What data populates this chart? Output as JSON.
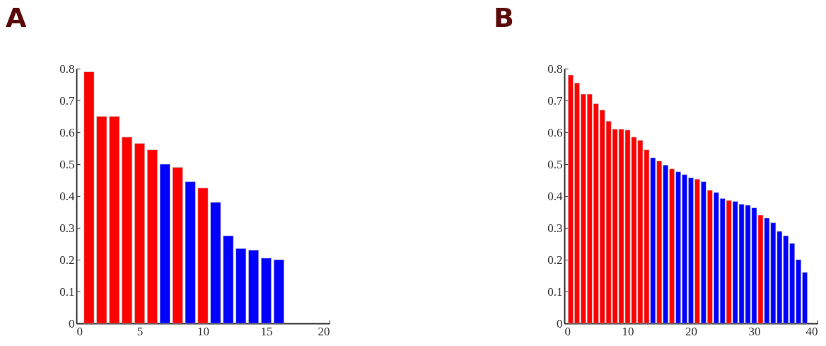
{
  "chart_data": [
    {
      "type": "bar",
      "title": "A",
      "x": [
        1,
        2,
        3,
        4,
        5,
        6,
        7,
        8,
        9,
        10,
        11,
        12,
        13,
        14,
        15,
        16
      ],
      "values": [
        0.79,
        0.65,
        0.65,
        0.585,
        0.565,
        0.545,
        0.5,
        0.49,
        0.445,
        0.425,
        0.38,
        0.275,
        0.235,
        0.23,
        0.205,
        0.2
      ],
      "colors": [
        "#ff0000",
        "#ff0000",
        "#ff0000",
        "#ff0000",
        "#ff0000",
        "#ff0000",
        "#0000ff",
        "#ff0000",
        "#0000ff",
        "#ff0000",
        "#0000ff",
        "#0000ff",
        "#0000ff",
        "#0000ff",
        "#0000ff",
        "#0000ff"
      ],
      "xlim": [
        0,
        20
      ],
      "xticks": [
        0,
        5,
        10,
        15,
        20
      ],
      "ylim": [
        0,
        0.8
      ],
      "yticks": [
        0,
        0.1,
        0.2,
        0.3,
        0.4,
        0.5,
        0.6,
        0.7,
        0.8
      ]
    },
    {
      "type": "bar",
      "title": "B",
      "x": [
        1,
        2,
        3,
        4,
        5,
        6,
        7,
        8,
        9,
        10,
        11,
        12,
        13,
        14,
        15,
        16,
        17,
        18,
        19,
        20,
        21,
        22,
        23,
        24,
        25,
        26,
        27,
        28,
        29,
        30,
        31,
        32,
        33,
        34,
        35,
        36,
        37,
        38
      ],
      "values": [
        0.78,
        0.755,
        0.72,
        0.72,
        0.69,
        0.67,
        0.635,
        0.61,
        0.61,
        0.607,
        0.585,
        0.575,
        0.545,
        0.52,
        0.51,
        0.497,
        0.485,
        0.476,
        0.467,
        0.457,
        0.453,
        0.445,
        0.418,
        0.411,
        0.392,
        0.386,
        0.383,
        0.374,
        0.371,
        0.363,
        0.34,
        0.331,
        0.316,
        0.289,
        0.275,
        0.251,
        0.2,
        0.16
      ],
      "colors": [
        "#ff0000",
        "#ff0000",
        "#ff0000",
        "#ff0000",
        "#ff0000",
        "#ff0000",
        "#ff0000",
        "#ff0000",
        "#ff0000",
        "#ff0000",
        "#ff0000",
        "#ff0000",
        "#ff0000",
        "#0000ff",
        "#ff0000",
        "#0000ff",
        "#ff0000",
        "#0000ff",
        "#0000ff",
        "#0000ff",
        "#ff0000",
        "#0000ff",
        "#ff0000",
        "#0000ff",
        "#0000ff",
        "#ff0000",
        "#0000ff",
        "#0000ff",
        "#0000ff",
        "#0000ff",
        "#ff0000",
        "#0000ff",
        "#0000ff",
        "#0000ff",
        "#0000ff",
        "#0000ff",
        "#0000ff",
        "#0000ff"
      ],
      "xlim": [
        0,
        40
      ],
      "xticks": [
        0,
        10,
        20,
        30,
        40
      ],
      "ylim": [
        0,
        0.8
      ],
      "yticks": [
        0,
        0.1,
        0.2,
        0.3,
        0.4,
        0.5,
        0.6,
        0.7,
        0.8
      ]
    }
  ]
}
